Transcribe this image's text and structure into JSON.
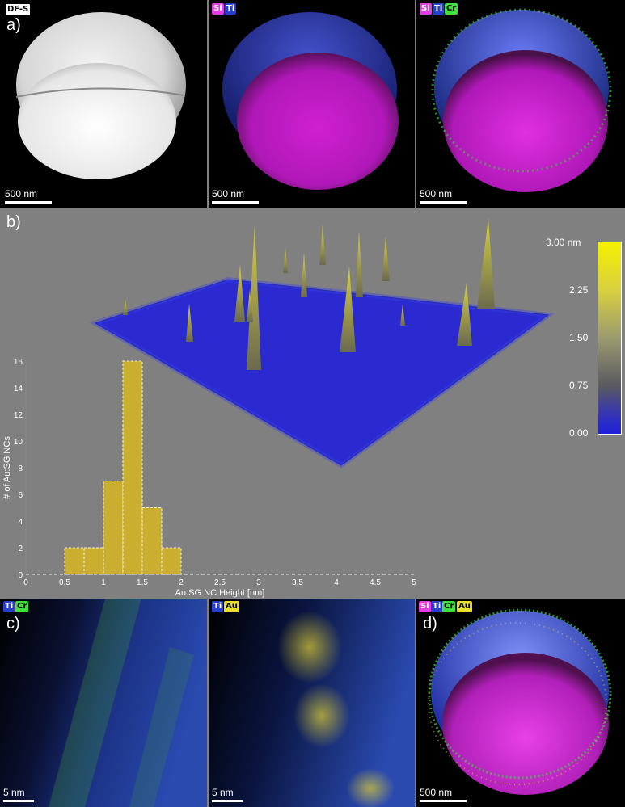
{
  "panel_a": {
    "label": "a)",
    "left": {
      "tag": "DF-S",
      "scalebar": "500 nm"
    },
    "middle": {
      "tags": [
        "Si",
        "Ti"
      ],
      "scalebar": "500 nm"
    },
    "right": {
      "tags": [
        "Si",
        "Ti",
        "Cr"
      ],
      "scalebar": "500 nm"
    }
  },
  "panel_b": {
    "label": "b)",
    "colorbar": {
      "ticks": [
        "3.00 nm",
        "2.25",
        "1.50",
        "0.75",
        "0.00"
      ]
    }
  },
  "panel_c": {
    "label": "c)",
    "left": {
      "tags": [
        "Ti",
        "Cr"
      ],
      "scalebar": "5 nm"
    },
    "right": {
      "tags": [
        "Ti",
        "Au"
      ],
      "scalebar": "5 nm"
    }
  },
  "panel_d": {
    "label": "d)",
    "tags": [
      "Si",
      "Ti",
      "Cr",
      "Au"
    ],
    "scalebar": "500 nm"
  },
  "colors": {
    "si": "#e040e0",
    "ti": "#2a3fc8",
    "cr": "#40e040",
    "au": "#e8e030",
    "bar": "#c9ae2f"
  },
  "chart_data": {
    "type": "bar",
    "title": "",
    "xlabel": "Au:SG NC Height [nm]",
    "ylabel": "# of Au:SG NCs",
    "bin_edges": [
      0.5,
      0.75,
      1.0,
      1.25,
      1.5,
      1.75,
      2.0
    ],
    "values": [
      2,
      2,
      7,
      16,
      5,
      2
    ],
    "xlim": [
      0,
      5
    ],
    "ylim": [
      0,
      16
    ],
    "xticks": [
      "0",
      "0.5",
      "1",
      "1.5",
      "2",
      "2.5",
      "3",
      "3.5",
      "4",
      "4.5",
      "5"
    ],
    "yticks": [
      "0",
      "2",
      "4",
      "6",
      "8",
      "10",
      "12",
      "14",
      "16"
    ]
  }
}
